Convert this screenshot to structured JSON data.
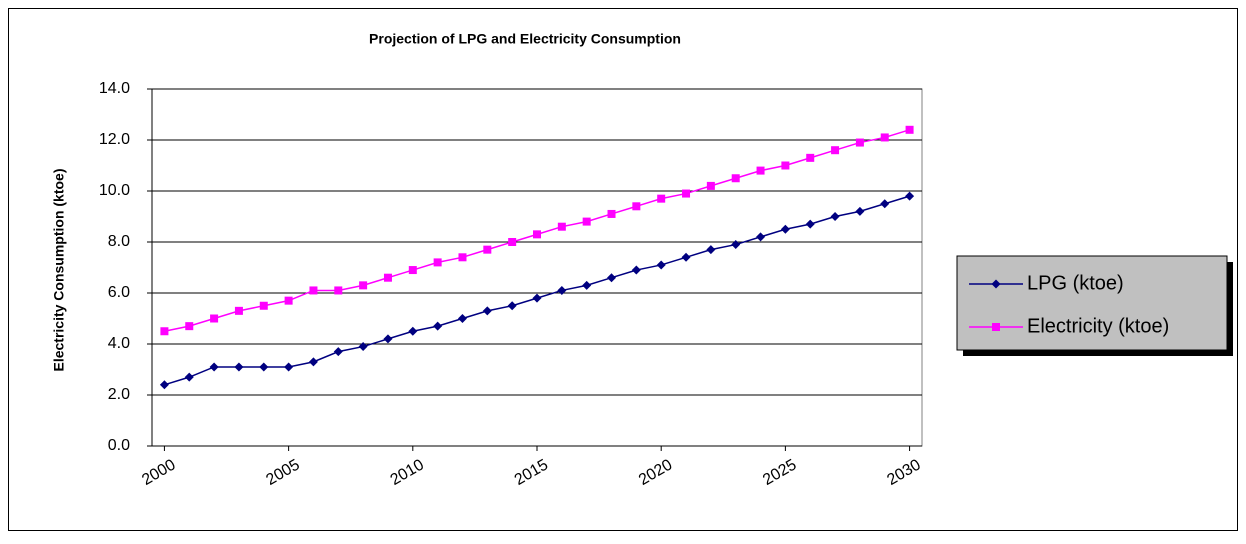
{
  "chart_data": {
    "type": "line",
    "title": "Projection of LPG and Electricity Consumption",
    "y_label": "Electricity Consumption  (ktoe)",
    "x": [
      2000,
      2001,
      2002,
      2003,
      2004,
      2005,
      2006,
      2007,
      2008,
      2009,
      2010,
      2011,
      2012,
      2013,
      2014,
      2015,
      2016,
      2017,
      2018,
      2019,
      2020,
      2021,
      2022,
      2023,
      2024,
      2025,
      2026,
      2027,
      2028,
      2029,
      2030
    ],
    "xlim": [
      1999.5,
      2030.5
    ],
    "xticks": [
      2000,
      2005,
      2010,
      2015,
      2020,
      2025,
      2030
    ],
    "ylim": [
      0,
      14
    ],
    "yticks": [
      {
        "value": 0,
        "label": "0.0"
      },
      {
        "value": 2,
        "label": "2.0"
      },
      {
        "value": 4,
        "label": "4.0"
      },
      {
        "value": 6,
        "label": "6.0"
      },
      {
        "value": 8,
        "label": "8.0"
      },
      {
        "value": 10,
        "label": "10.0"
      },
      {
        "value": 12,
        "label": "12.0"
      },
      {
        "value": 14,
        "label": "14.0"
      }
    ],
    "grid": true,
    "legend": "right",
    "series": [
      {
        "name": "LPG (ktoe)",
        "color": "#000080",
        "marker": "diamond",
        "values": [
          2.4,
          2.7,
          3.1,
          3.1,
          3.1,
          3.1,
          3.3,
          3.7,
          3.9,
          4.2,
          4.5,
          4.7,
          5.0,
          5.3,
          5.5,
          5.8,
          6.1,
          6.3,
          6.6,
          6.9,
          7.1,
          7.4,
          7.7,
          7.9,
          8.2,
          8.5,
          8.7,
          9.0,
          9.2,
          9.5,
          9.8
        ]
      },
      {
        "name": "Electricity (ktoe)",
        "color": "#ff00ff",
        "marker": "square",
        "values": [
          4.5,
          4.7,
          5.0,
          5.3,
          5.5,
          5.7,
          6.1,
          6.1,
          6.3,
          6.6,
          6.9,
          7.2,
          7.4,
          7.7,
          8.0,
          8.3,
          8.6,
          8.8,
          9.1,
          9.4,
          9.7,
          9.9,
          10.2,
          10.5,
          10.8,
          11.0,
          11.3,
          11.6,
          11.9,
          12.1,
          12.4
        ]
      }
    ]
  }
}
